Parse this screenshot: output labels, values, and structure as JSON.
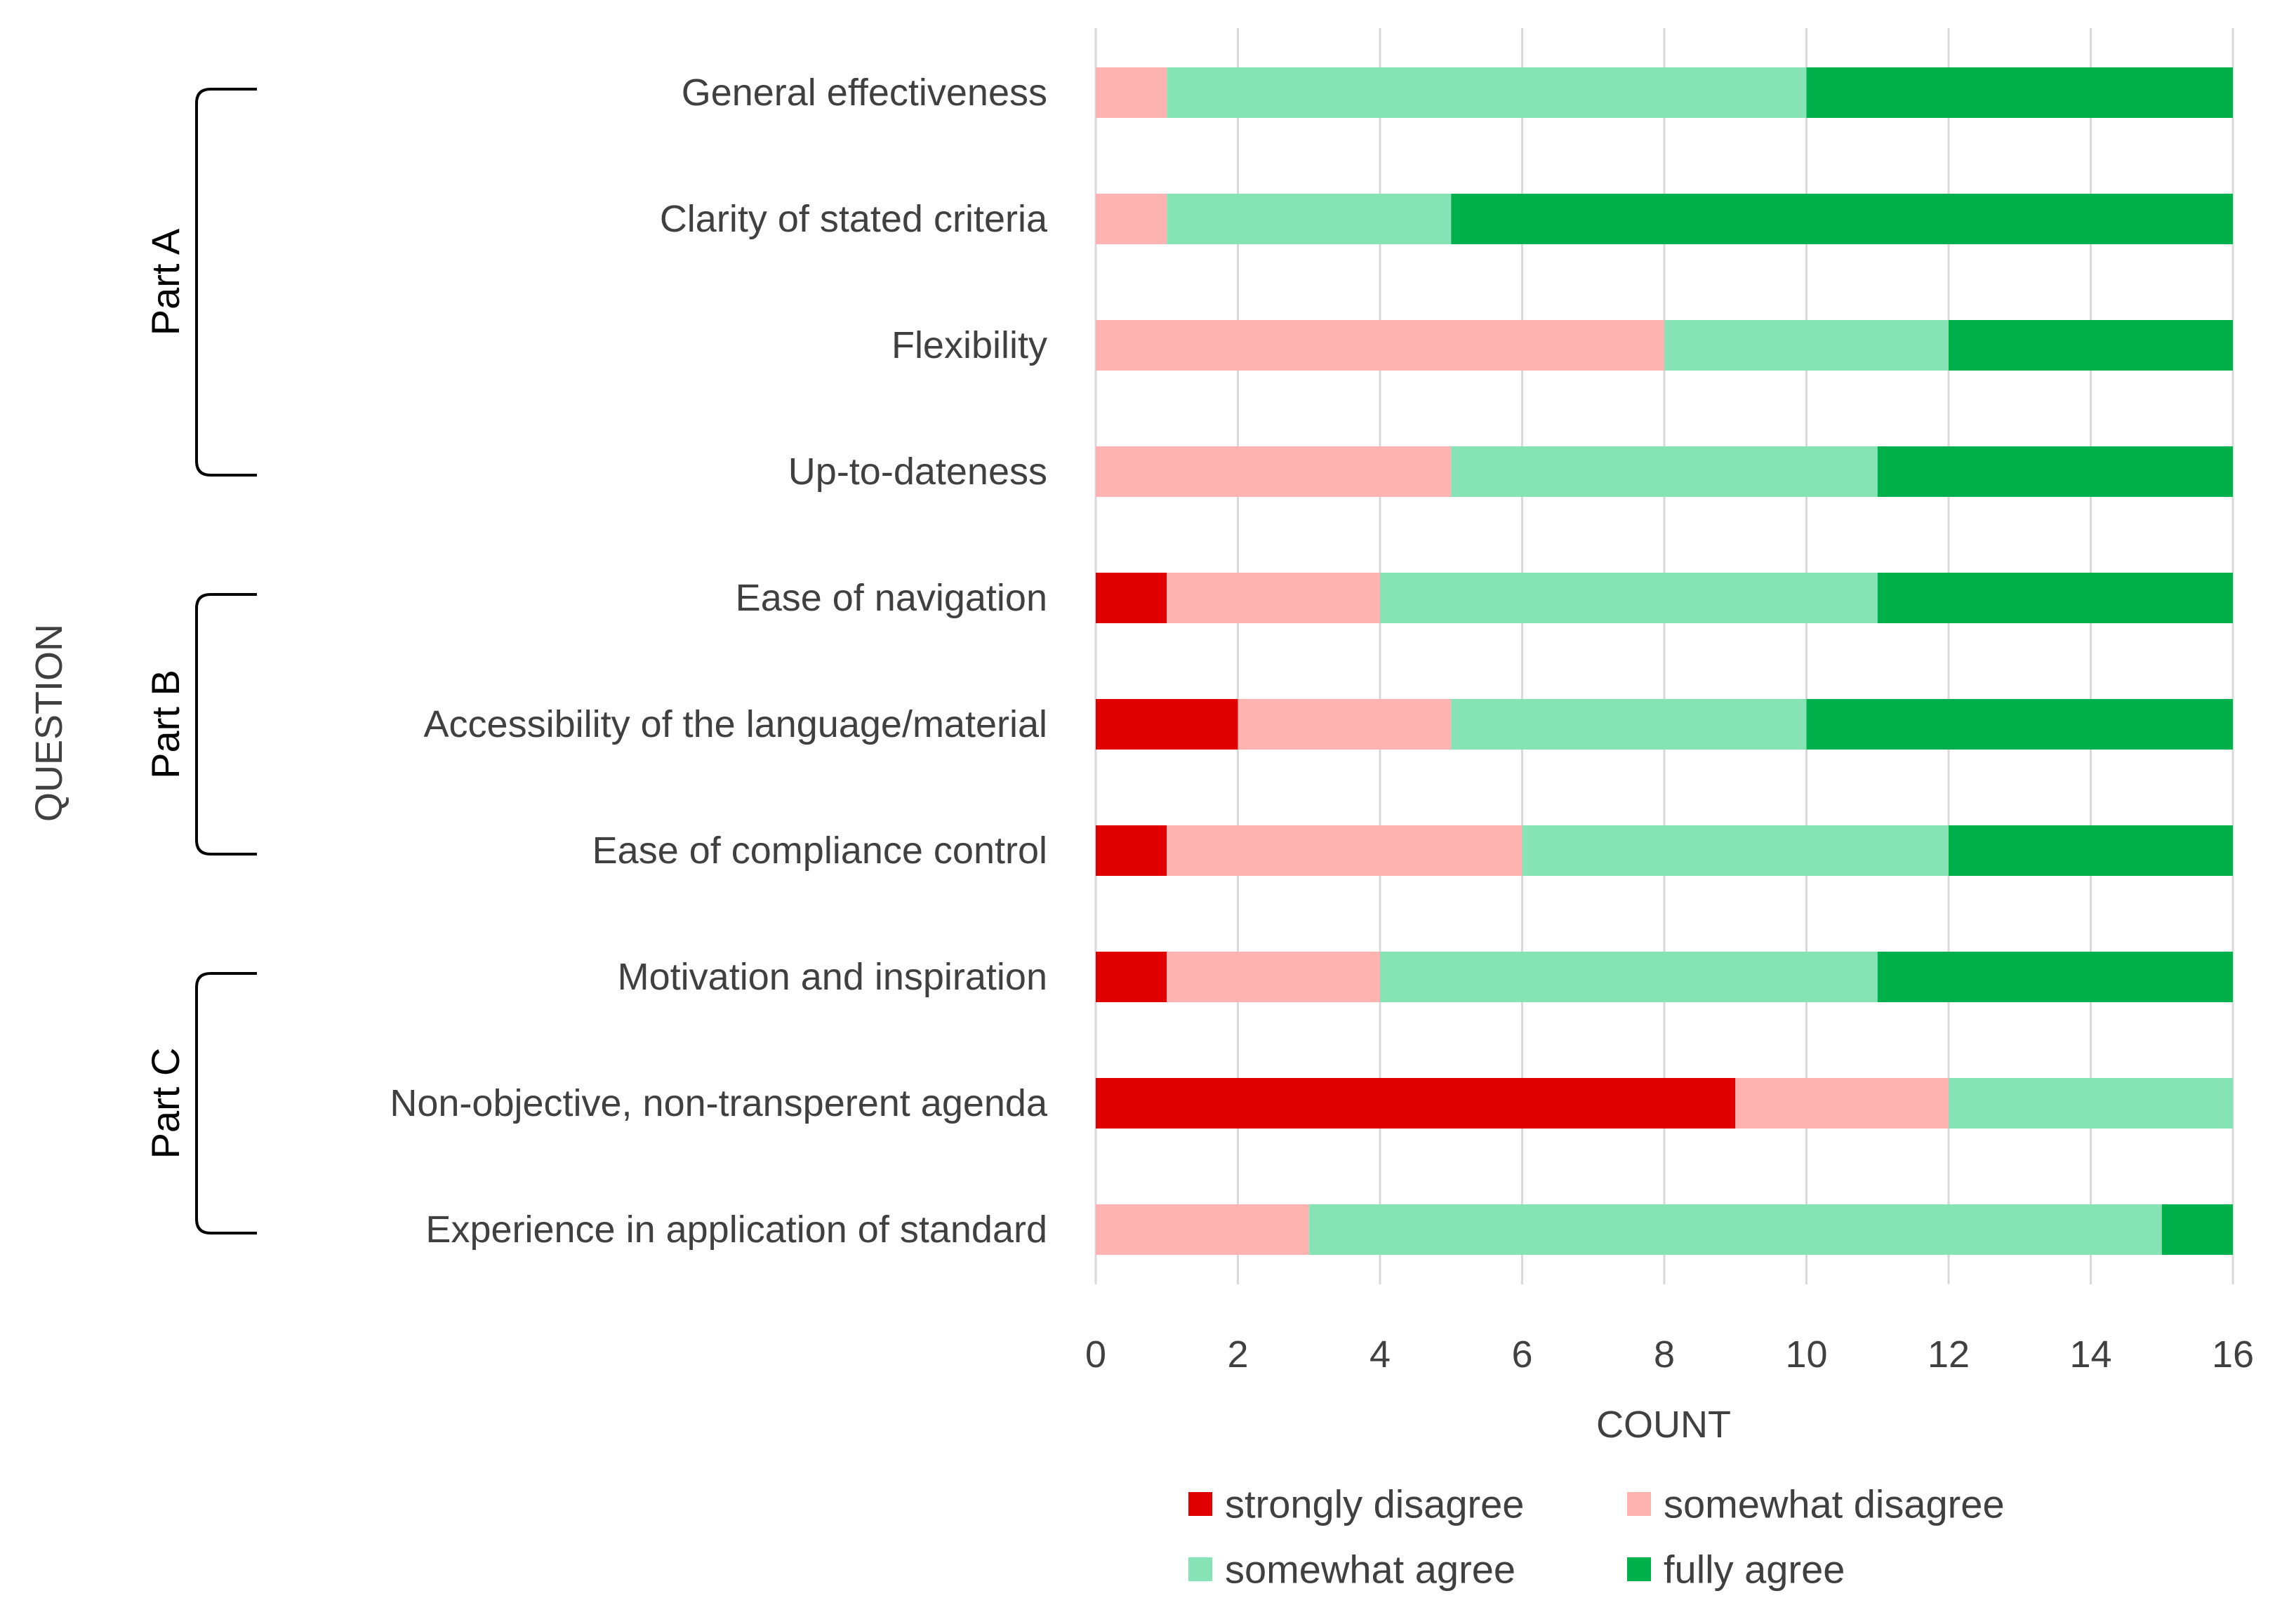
{
  "chart_data": {
    "type": "bar",
    "orientation": "horizontal",
    "stacked": true,
    "title": "",
    "xlabel": "COUNT",
    "ylabel": "QUESTION",
    "xlim": [
      0,
      16
    ],
    "xticks": [
      0,
      2,
      4,
      6,
      8,
      10,
      12,
      14,
      16
    ],
    "grid": true,
    "legend_position": "bottom",
    "categories": [
      "General effectiveness",
      "Clarity of stated criteria",
      "Flexibility",
      "Up-to-dateness",
      "Ease of navigation",
      "Accessibility of the language/material",
      "Ease of compliance control",
      "Motivation and inspiration",
      "Non-objective, non-transperent agenda",
      "Experience in application of standard"
    ],
    "series": [
      {
        "name": "strongly disagree",
        "color": "#e00000",
        "values": [
          0,
          0,
          0,
          0,
          1,
          2,
          1,
          1,
          9,
          0
        ]
      },
      {
        "name": "somewhat disagree",
        "color": "#ffb3b0",
        "values": [
          1,
          1,
          8,
          5,
          3,
          3,
          5,
          3,
          3,
          3
        ]
      },
      {
        "name": "somewhat agree",
        "color": "#86e3b6",
        "values": [
          9,
          4,
          4,
          6,
          7,
          5,
          6,
          7,
          4,
          12
        ]
      },
      {
        "name": "fully agree",
        "color": "#00b04a",
        "values": [
          6,
          11,
          4,
          5,
          5,
          6,
          4,
          5,
          0,
          1
        ]
      }
    ],
    "groups": [
      {
        "label": "Part A",
        "from": 0,
        "to": 3
      },
      {
        "label": "Part B",
        "from": 4,
        "to": 6
      },
      {
        "label": "Part C",
        "from": 7,
        "to": 9
      }
    ]
  }
}
